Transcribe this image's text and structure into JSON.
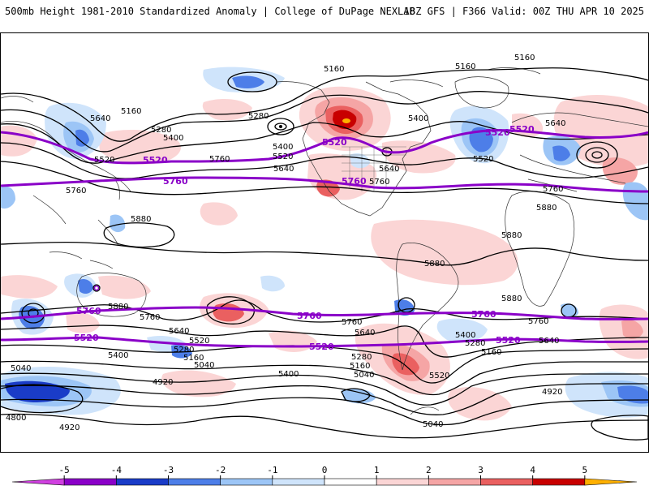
{
  "header": {
    "left_title": "500mb Height 1981-2010 Standardized Anomaly | College of DuPage NEXLAB",
    "right_title": "18Z GFS | F366 Valid: 00Z THU APR 10 2025"
  },
  "colors": {
    "purple_contour": "#8a00c8",
    "neg_1": "#cfe4fb",
    "neg_2": "#9cc5f6",
    "neg_3": "#4d7ee8",
    "neg_4": "#1a3cc8",
    "neg_5": "#8a00c8",
    "pos_1": "#fbd5d5",
    "pos_2": "#f5a5a5",
    "pos_3": "#ea6060",
    "pos_4": "#c80000",
    "pos_5": "#ffb000"
  },
  "colorbar": {
    "ticks": [
      "-5",
      "-4",
      "-3",
      "-2",
      "-1",
      "0",
      "1",
      "2",
      "3",
      "4",
      "5"
    ],
    "segments": [
      "#d040e0",
      "#8a00c8",
      "#1a3cc8",
      "#4d7ee8",
      "#9cc5f6",
      "#cfe4fb",
      "#ffffff",
      "#fbd5d5",
      "#f5a5a5",
      "#ea6060",
      "#c80000",
      "#ffb000"
    ]
  },
  "contour_labels": {
    "l5160_top": "5160",
    "l5160_top2": "5160",
    "l5160_topright": "5160",
    "l5160_left": "5160",
    "l5280_a": "5280",
    "l5280_b": "5280",
    "l5400_a": "5400",
    "l5400_b": "5400",
    "l5400_c": "5400",
    "l5520_a": "5520",
    "l5520_b": "5520",
    "l5520_c": "5520",
    "l5640_a": "5640",
    "l5640_b": "5640",
    "l5640_c": "5640",
    "l5640_d": "5640",
    "l5760_a": "5760",
    "l5760_b": "5760",
    "l5760_c": "5760",
    "l5760_d": "5760",
    "l5880_a": "5880",
    "l5880_b": "5880",
    "l5880_c": "5880",
    "l5880_d": "5880",
    "l5880_e": "5880",
    "l5880_f": "5880",
    "l5760_s1": "5760",
    "l5760_s2": "5760",
    "l5760_s3": "5760",
    "l5640_s1": "5640",
    "l5640_s2": "5640",
    "l5640_s3": "5640",
    "l5520_s1": "5520",
    "l5520_s2": "5520",
    "l5400_s1": "5400",
    "l5400_s2": "5400",
    "l5400_s3": "5400",
    "l5280_s1": "5280",
    "l5280_s2": "5280",
    "l5280_s3": "5280",
    "l5160_s1": "5160",
    "l5160_s2": "5160",
    "l5160_s3": "5160",
    "l5040_s1": "5040",
    "l5040_s2": "5040",
    "l5040_s3": "5040",
    "l5040_s4": "5040",
    "l4920_s1": "4920",
    "l4920_s2": "4920",
    "l4920_s3": "4920",
    "l4800_s1": "4800"
  },
  "purple_labels": {
    "n5520_a": "5520",
    "n5520_b": "5520",
    "n5520_c": "5520",
    "n5520_d": "5520",
    "n5760_a": "5760",
    "n5760_b": "5760",
    "s5760_a": "5760",
    "s5760_b": "5760",
    "s5760_c": "5760",
    "s5520_a": "5520",
    "s5520_b": "5520",
    "s5520_c": "5520"
  }
}
